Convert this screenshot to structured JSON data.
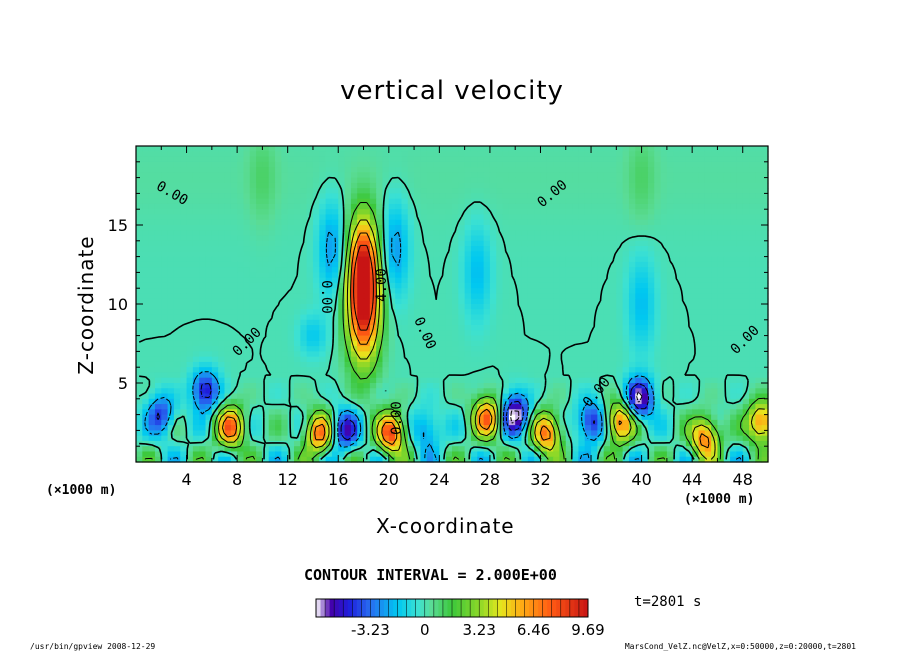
{
  "chart_data": {
    "type": "heatmap",
    "title": "vertical velocity",
    "xlabel": "X-coordinate",
    "ylabel": "Z-coordinate",
    "x_unit_label": "(×1000 m)",
    "xlim": [
      0,
      50
    ],
    "ylim": [
      0,
      20
    ],
    "x_ticks": [
      4,
      8,
      12,
      16,
      20,
      24,
      28,
      32,
      36,
      40,
      44,
      48
    ],
    "y_ticks": [
      5,
      10,
      15
    ],
    "contour_interval_label": "CONTOUR INTERVAL = 2.000E+00",
    "contour_labels": [
      "0.00",
      "0.00",
      "0.00",
      "0.00",
      "0.00",
      "0.00",
      "4.00",
      "0.00",
      "0.00"
    ],
    "colorbar": {
      "ticks": [
        "-3.23",
        "0",
        "3.23",
        "6.46",
        "9.69"
      ],
      "range": [
        -6.46,
        9.69
      ]
    },
    "time_label": "t=2801 s",
    "features": [
      {
        "x": 18,
        "z": 10,
        "value": 9.5
      },
      {
        "x": 18,
        "z": 13,
        "value": 5
      },
      {
        "x": 7.5,
        "z": 2.2,
        "value": 7
      },
      {
        "x": 14.5,
        "z": 1.8,
        "value": 7
      },
      {
        "x": 20.2,
        "z": 1.8,
        "value": 8
      },
      {
        "x": 27.8,
        "z": 2.8,
        "value": 7
      },
      {
        "x": 32.5,
        "z": 1.8,
        "value": 7
      },
      {
        "x": 38.3,
        "z": 2.5,
        "value": 7
      },
      {
        "x": 45,
        "z": 1.5,
        "value": 7
      },
      {
        "x": 49.5,
        "z": 2.5,
        "value": 7
      },
      {
        "x": 39.8,
        "z": 4.0,
        "value": -6.5
      },
      {
        "x": 30.0,
        "z": 3.0,
        "value": -6.5
      },
      {
        "x": 5.5,
        "z": 4.5,
        "value": -5
      },
      {
        "x": 16.5,
        "z": 2.0,
        "value": -5
      },
      {
        "x": 36.0,
        "z": 2.5,
        "value": -5
      },
      {
        "x": 2.0,
        "z": 3.0,
        "value": -4
      },
      {
        "x": 23.0,
        "z": 2.0,
        "value": -3
      },
      {
        "x": 15.5,
        "z": 13.5,
        "value": -2.5
      },
      {
        "x": 20.5,
        "z": 13.5,
        "value": -2.5
      },
      {
        "x": 27.0,
        "z": 12.0,
        "value": -1.8
      },
      {
        "x": 40.0,
        "z": 10.0,
        "value": -1.8
      },
      {
        "x": 14.0,
        "z": 8.0,
        "value": -1.5
      },
      {
        "x": 40.0,
        "z": 18.0,
        "value": 0.8
      },
      {
        "x": 10.0,
        "z": 18.0,
        "value": 0.8
      }
    ]
  },
  "footer": {
    "left": "/usr/bin/gpview   2008-12-29",
    "right": "MarsCond_VelZ.nc@VelZ,x=0:50000,z=0:20000,t=2801"
  }
}
